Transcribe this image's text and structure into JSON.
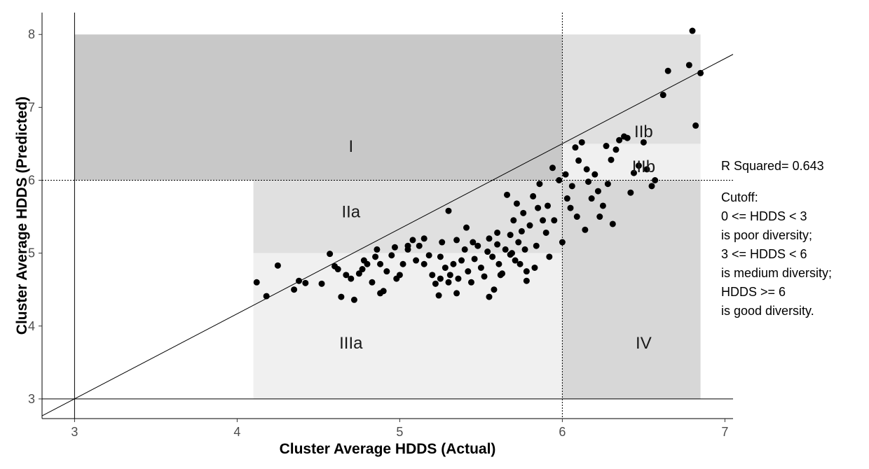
{
  "chart_data": {
    "type": "scatter",
    "xlabel": "Cluster Average HDDS (Actual)",
    "ylabel": "Cluster Average HDDS (Predicted)",
    "xlim": [
      2.8,
      7.05
    ],
    "ylim": [
      2.73,
      8.3
    ],
    "x_ticks": [
      "3",
      "4",
      "5",
      "6",
      "7"
    ],
    "y_ticks": [
      "3",
      "4",
      "5",
      "6",
      "7",
      "8"
    ],
    "grid": false,
    "reference_lines": {
      "vertical": [
        3,
        6
      ],
      "horizontal": [
        3,
        6
      ],
      "dotted": [
        6
      ]
    },
    "fit_line": {
      "intercept": -0.5,
      "slope": 1.167
    },
    "regions": [
      {
        "label": "I",
        "x": [
          3,
          6
        ],
        "y": [
          6,
          8
        ],
        "color": "#c8c8c8"
      },
      {
        "label": "IIa",
        "x": [
          4.1,
          6
        ],
        "y": [
          5,
          6
        ],
        "color": "#e0e0e0"
      },
      {
        "label": "IIb",
        "x": [
          6,
          6.85
        ],
        "y": [
          6.5,
          8
        ],
        "color": "#e0e0e0"
      },
      {
        "label": "IIIa",
        "x": [
          4.1,
          6
        ],
        "y": [
          3,
          5
        ],
        "color": "#f0f0f0"
      },
      {
        "label": "IIIb",
        "x": [
          6,
          6.85
        ],
        "y": [
          6,
          6.5
        ],
        "color": "#f0f0f0"
      },
      {
        "label": "IV",
        "x": [
          6,
          6.85
        ],
        "y": [
          3,
          6
        ],
        "color": "#d7d7d7"
      }
    ],
    "region_labels": [
      {
        "text": "I",
        "x": 4.7,
        "y": 6.45
      },
      {
        "text": "IIa",
        "x": 4.7,
        "y": 5.55
      },
      {
        "text": "IIb",
        "x": 6.5,
        "y": 6.65
      },
      {
        "text": "IIIb",
        "x": 6.5,
        "y": 6.17
      },
      {
        "text": "IIIa",
        "x": 4.7,
        "y": 3.75
      },
      {
        "text": "IV",
        "x": 6.5,
        "y": 3.75
      }
    ],
    "points": [
      [
        4.12,
        4.6
      ],
      [
        4.18,
        4.41
      ],
      [
        4.25,
        4.83
      ],
      [
        4.35,
        4.5
      ],
      [
        4.38,
        4.62
      ],
      [
        4.42,
        4.59
      ],
      [
        4.52,
        4.58
      ],
      [
        4.57,
        4.99
      ],
      [
        4.6,
        4.82
      ],
      [
        4.62,
        4.78
      ],
      [
        4.64,
        4.4
      ],
      [
        4.67,
        4.7
      ],
      [
        4.7,
        4.65
      ],
      [
        4.72,
        4.36
      ],
      [
        4.75,
        4.72
      ],
      [
        4.77,
        4.78
      ],
      [
        4.78,
        4.9
      ],
      [
        4.8,
        4.85
      ],
      [
        4.83,
        4.6
      ],
      [
        4.85,
        4.95
      ],
      [
        4.86,
        5.05
      ],
      [
        4.88,
        4.85
      ],
      [
        4.9,
        4.48
      ],
      [
        4.92,
        4.75
      ],
      [
        4.95,
        4.97
      ],
      [
        4.97,
        5.08
      ],
      [
        5.0,
        4.7
      ],
      [
        5.02,
        4.85
      ],
      [
        5.05,
        5.05
      ],
      [
        5.08,
        5.18
      ],
      [
        5.1,
        4.9
      ],
      [
        5.12,
        5.1
      ],
      [
        5.15,
        4.85
      ],
      [
        5.18,
        4.97
      ],
      [
        5.2,
        4.7
      ],
      [
        5.22,
        4.58
      ],
      [
        5.24,
        4.42
      ],
      [
        5.25,
        4.95
      ],
      [
        5.26,
        5.15
      ],
      [
        5.28,
        4.8
      ],
      [
        5.3,
        5.58
      ],
      [
        5.31,
        4.7
      ],
      [
        5.33,
        4.85
      ],
      [
        5.35,
        5.18
      ],
      [
        5.36,
        4.65
      ],
      [
        5.38,
        4.9
      ],
      [
        5.4,
        5.05
      ],
      [
        5.41,
        5.35
      ],
      [
        5.42,
        4.75
      ],
      [
        5.44,
        4.6
      ],
      [
        5.46,
        4.92
      ],
      [
        5.48,
        5.1
      ],
      [
        5.5,
        4.8
      ],
      [
        5.52,
        4.68
      ],
      [
        5.54,
        5.02
      ],
      [
        5.55,
        5.2
      ],
      [
        5.57,
        4.95
      ],
      [
        5.58,
        4.5
      ],
      [
        5.6,
        5.12
      ],
      [
        5.61,
        4.85
      ],
      [
        5.63,
        4.72
      ],
      [
        5.65,
        5.05
      ],
      [
        5.66,
        5.8
      ],
      [
        5.68,
        5.25
      ],
      [
        5.69,
        5.0
      ],
      [
        5.7,
        5.45
      ],
      [
        5.71,
        4.9
      ],
      [
        5.72,
        5.68
      ],
      [
        5.73,
        5.15
      ],
      [
        5.74,
        4.85
      ],
      [
        5.75,
        5.3
      ],
      [
        5.76,
        5.55
      ],
      [
        5.77,
        5.05
      ],
      [
        5.78,
        4.75
      ],
      [
        5.8,
        5.38
      ],
      [
        5.82,
        5.78
      ],
      [
        5.83,
        4.8
      ],
      [
        5.84,
        5.1
      ],
      [
        5.85,
        5.62
      ],
      [
        5.86,
        5.95
      ],
      [
        5.88,
        5.45
      ],
      [
        5.9,
        5.28
      ],
      [
        5.91,
        5.65
      ],
      [
        5.92,
        4.95
      ],
      [
        5.94,
        6.17
      ],
      [
        5.95,
        5.45
      ],
      [
        5.98,
        6.0
      ],
      [
        6.0,
        5.15
      ],
      [
        6.02,
        6.08
      ],
      [
        6.03,
        5.75
      ],
      [
        6.05,
        5.62
      ],
      [
        6.06,
        5.92
      ],
      [
        6.08,
        6.45
      ],
      [
        6.09,
        5.5
      ],
      [
        6.1,
        6.27
      ],
      [
        6.12,
        6.52
      ],
      [
        6.14,
        5.32
      ],
      [
        6.15,
        6.15
      ],
      [
        6.16,
        5.98
      ],
      [
        6.18,
        5.75
      ],
      [
        6.2,
        6.08
      ],
      [
        6.22,
        5.85
      ],
      [
        6.23,
        5.5
      ],
      [
        6.25,
        5.65
      ],
      [
        6.27,
        6.47
      ],
      [
        6.28,
        5.95
      ],
      [
        6.3,
        6.28
      ],
      [
        6.31,
        5.4
      ],
      [
        6.33,
        6.42
      ],
      [
        6.35,
        6.55
      ],
      [
        6.38,
        6.6
      ],
      [
        6.4,
        6.58
      ],
      [
        6.42,
        5.83
      ],
      [
        6.44,
        6.1
      ],
      [
        6.47,
        6.2
      ],
      [
        6.5,
        6.52
      ],
      [
        6.52,
        6.15
      ],
      [
        6.55,
        5.92
      ],
      [
        6.57,
        6.0
      ],
      [
        6.62,
        7.17
      ],
      [
        6.65,
        7.5
      ],
      [
        6.78,
        7.58
      ],
      [
        6.8,
        8.05
      ],
      [
        6.82,
        6.75
      ],
      [
        6.85,
        7.47
      ],
      [
        5.6,
        5.28
      ],
      [
        5.45,
        5.15
      ],
      [
        5.3,
        4.6
      ],
      [
        5.25,
        4.65
      ],
      [
        5.55,
        4.4
      ],
      [
        5.05,
        5.1
      ],
      [
        4.98,
        4.65
      ],
      [
        4.88,
        4.45
      ],
      [
        5.68,
        4.98
      ],
      [
        5.62,
        4.7
      ],
      [
        5.35,
        4.45
      ],
      [
        5.15,
        5.2
      ],
      [
        5.78,
        4.62
      ]
    ]
  },
  "annotation": {
    "r_squared": "R Squared=  0.643",
    "cutoff_lines": [
      "Cutoff:",
      "0 <= HDDS < 3",
      "is poor diversity;",
      "3 <= HDDS < 6",
      "is medium diversity;",
      "HDDS >= 6",
      "is good diversity."
    ]
  }
}
